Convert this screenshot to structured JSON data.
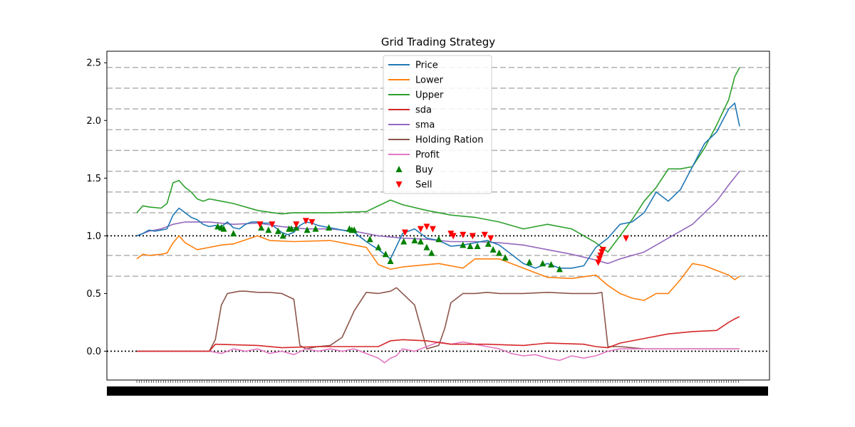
{
  "chart_data": {
    "type": "line",
    "title": "Grid Trading Strategy",
    "xlabel": "",
    "ylabel": "",
    "xlim": [
      0,
      499
    ],
    "ylim": [
      -0.25,
      2.6
    ],
    "yticks": [
      0.0,
      0.5,
      1.0,
      1.5,
      2.0,
      2.5
    ],
    "ytick_labels": [
      "0.0",
      "0.5",
      "1.0",
      "1.5",
      "2.0",
      "2.5"
    ],
    "grid_levels": [
      0.65,
      0.83,
      1.2,
      1.38,
      1.56,
      1.74,
      1.92,
      2.1,
      2.28,
      2.46
    ],
    "reference_lines": [
      0.0,
      1.0
    ],
    "legend_position": "top-center",
    "colors": {
      "price": "#1f77b4",
      "lower": "#ff7f0e",
      "upper": "#2ca02c",
      "sda": "#d62728",
      "sma": "#9467bd",
      "holding": "#8c564b",
      "profit": "#e377c2",
      "buy": "#008000",
      "sell": "#ff0000",
      "grid": "#b0b0b0"
    },
    "series": [
      {
        "name": "Price",
        "key": "price",
        "x": [
          0,
          5,
          10,
          15,
          20,
          25,
          30,
          35,
          40,
          45,
          50,
          55,
          60,
          65,
          70,
          75,
          80,
          85,
          90,
          95,
          100,
          105,
          110,
          115,
          120,
          125,
          130,
          135,
          140,
          145,
          150,
          160,
          170,
          180,
          190,
          200,
          210,
          220,
          230,
          240,
          250,
          260,
          270,
          280,
          290,
          300,
          310,
          320,
          330,
          340,
          350,
          360,
          370,
          380,
          390,
          400,
          410,
          420,
          430,
          440,
          450,
          460,
          470,
          480,
          490,
          495,
          499
        ],
        "y": [
          1.0,
          1.02,
          1.05,
          1.04,
          1.05,
          1.06,
          1.18,
          1.24,
          1.2,
          1.16,
          1.14,
          1.1,
          1.08,
          1.09,
          1.08,
          1.12,
          1.07,
          1.06,
          1.1,
          1.12,
          1.12,
          1.11,
          1.11,
          1.07,
          1.03,
          1.01,
          1.03,
          1.09,
          1.12,
          1.11,
          1.09,
          1.07,
          1.05,
          1.03,
          0.95,
          0.88,
          0.8,
          1.02,
          1.06,
          0.98,
          0.96,
          0.91,
          0.92,
          0.94,
          0.96,
          0.92,
          0.84,
          0.76,
          0.72,
          0.76,
          0.72,
          0.72,
          0.74,
          0.9,
          0.98,
          1.1,
          1.12,
          1.2,
          1.38,
          1.3,
          1.4,
          1.6,
          1.8,
          1.9,
          2.1,
          2.15,
          1.95
        ]
      },
      {
        "name": "Lower",
        "key": "lower",
        "x": [
          0,
          5,
          10,
          20,
          25,
          30,
          35,
          40,
          50,
          60,
          70,
          80,
          100,
          110,
          130,
          160,
          190,
          200,
          210,
          220,
          250,
          270,
          280,
          300,
          320,
          340,
          360,
          380,
          390,
          400,
          410,
          420,
          430,
          440,
          450,
          460,
          470,
          480,
          490,
          495,
          499
        ],
        "y": [
          0.8,
          0.84,
          0.83,
          0.84,
          0.85,
          0.94,
          1.0,
          0.94,
          0.88,
          0.9,
          0.92,
          0.93,
          1.0,
          0.96,
          0.95,
          0.96,
          0.9,
          0.75,
          0.71,
          0.73,
          0.76,
          0.72,
          0.8,
          0.8,
          0.72,
          0.64,
          0.63,
          0.66,
          0.57,
          0.5,
          0.46,
          0.44,
          0.5,
          0.5,
          0.62,
          0.76,
          0.74,
          0.7,
          0.66,
          0.62,
          0.65
        ]
      },
      {
        "name": "Upper",
        "key": "upper",
        "x": [
          0,
          5,
          10,
          20,
          25,
          30,
          35,
          40,
          45,
          50,
          55,
          60,
          70,
          80,
          100,
          120,
          130,
          160,
          190,
          210,
          220,
          240,
          260,
          280,
          300,
          320,
          340,
          360,
          380,
          390,
          400,
          410,
          420,
          430,
          440,
          450,
          460,
          470,
          480,
          490,
          495,
          499
        ],
        "y": [
          1.2,
          1.26,
          1.25,
          1.24,
          1.28,
          1.46,
          1.48,
          1.42,
          1.38,
          1.32,
          1.3,
          1.32,
          1.3,
          1.28,
          1.22,
          1.19,
          1.2,
          1.2,
          1.21,
          1.31,
          1.27,
          1.22,
          1.18,
          1.16,
          1.12,
          1.06,
          1.1,
          1.06,
          0.94,
          0.86,
          1.0,
          1.14,
          1.3,
          1.42,
          1.58,
          1.58,
          1.6,
          1.76,
          1.96,
          2.18,
          2.38,
          2.46
        ]
      },
      {
        "name": "sda",
        "key": "sda",
        "x": [
          0,
          60,
          65,
          100,
          120,
          150,
          200,
          210,
          220,
          240,
          260,
          290,
          320,
          340,
          370,
          380,
          390,
          400,
          410,
          420,
          440,
          460,
          480,
          490,
          495,
          499
        ],
        "y": [
          0.0,
          0.0,
          0.06,
          0.05,
          0.03,
          0.04,
          0.04,
          0.09,
          0.1,
          0.09,
          0.06,
          0.06,
          0.05,
          0.07,
          0.06,
          0.04,
          0.03,
          0.07,
          0.09,
          0.11,
          0.15,
          0.17,
          0.18,
          0.25,
          0.28,
          0.3
        ]
      },
      {
        "name": "sma",
        "key": "sma",
        "x": [
          0,
          5,
          10,
          20,
          30,
          40,
          60,
          80,
          100,
          120,
          140,
          160,
          180,
          200,
          220,
          240,
          260,
          280,
          300,
          320,
          340,
          360,
          380,
          390,
          400,
          420,
          440,
          460,
          480,
          490,
          499
        ],
        "y": [
          1.0,
          1.02,
          1.04,
          1.06,
          1.1,
          1.12,
          1.12,
          1.1,
          1.11,
          1.08,
          1.06,
          1.06,
          1.04,
          1.0,
          0.98,
          0.97,
          0.95,
          0.95,
          0.94,
          0.92,
          0.88,
          0.84,
          0.79,
          0.76,
          0.8,
          0.86,
          0.98,
          1.1,
          1.3,
          1.44,
          1.56
        ]
      },
      {
        "name": "Holding Ration",
        "key": "holding",
        "x": [
          0,
          60,
          65,
          70,
          75,
          80,
          85,
          90,
          100,
          110,
          120,
          130,
          135,
          140,
          150,
          160,
          170,
          180,
          190,
          200,
          210,
          215,
          220,
          230,
          240,
          250,
          255,
          260,
          270,
          280,
          290,
          300,
          320,
          340,
          360,
          380,
          385,
          390,
          400,
          410,
          420,
          430,
          440,
          450,
          460,
          470,
          480,
          490,
          499
        ],
        "y": [
          0.0,
          0.0,
          0.1,
          0.4,
          0.5,
          0.51,
          0.52,
          0.52,
          0.51,
          0.51,
          0.5,
          0.45,
          0.05,
          0.02,
          0.04,
          0.05,
          0.12,
          0.35,
          0.51,
          0.5,
          0.52,
          0.55,
          0.5,
          0.4,
          0.02,
          0.05,
          0.2,
          0.42,
          0.5,
          0.5,
          0.51,
          0.5,
          0.5,
          0.51,
          0.5,
          0.5,
          0.51,
          0.04,
          0.04,
          0.03,
          0.02,
          0.02,
          0.02,
          0.02,
          0.02,
          0.02,
          0.02,
          0.02,
          0.02
        ]
      },
      {
        "name": "Profit",
        "key": "profit",
        "x": [
          0,
          60,
          70,
          80,
          90,
          100,
          110,
          120,
          130,
          140,
          150,
          160,
          170,
          180,
          190,
          200,
          205,
          210,
          215,
          220,
          230,
          240,
          250,
          260,
          270,
          280,
          290,
          300,
          310,
          320,
          330,
          340,
          350,
          360,
          370,
          380,
          385,
          390,
          400,
          499
        ],
        "y": [
          0.0,
          0.0,
          -0.02,
          0.02,
          0.0,
          0.02,
          -0.02,
          0.0,
          -0.03,
          0.02,
          0.0,
          0.02,
          0.0,
          0.02,
          -0.02,
          -0.06,
          -0.1,
          -0.06,
          -0.04,
          0.02,
          0.0,
          0.04,
          0.08,
          0.06,
          0.08,
          0.06,
          0.04,
          0.02,
          -0.02,
          -0.04,
          -0.03,
          -0.06,
          -0.08,
          -0.04,
          -0.06,
          -0.04,
          -0.02,
          0.0,
          0.02,
          0.02
        ]
      }
    ],
    "buy": {
      "name": "Buy",
      "x": [
        67,
        70,
        72,
        80,
        103,
        109,
        117,
        121,
        126,
        128,
        132,
        141,
        148,
        159,
        176,
        178,
        180,
        193,
        200,
        206,
        210,
        221,
        230,
        235,
        240,
        244,
        250,
        270,
        276,
        282,
        291,
        295,
        300,
        305,
        325,
        336,
        343,
        350
      ],
      "y": [
        1.08,
        1.07,
        1.06,
        1.02,
        1.07,
        1.05,
        1.04,
        1.0,
        1.06,
        1.06,
        1.07,
        1.05,
        1.06,
        1.07,
        1.06,
        1.05,
        1.05,
        0.97,
        0.9,
        0.84,
        0.78,
        0.95,
        0.96,
        0.95,
        0.9,
        0.85,
        0.97,
        0.92,
        0.91,
        0.91,
        0.93,
        0.88,
        0.85,
        0.81,
        0.77,
        0.76,
        0.75,
        0.71
      ]
    },
    "sell": {
      "name": "Sell",
      "x": [
        102,
        112,
        132,
        140,
        145,
        222,
        235,
        240,
        245,
        260,
        262,
        270,
        278,
        288,
        293,
        382,
        383,
        384,
        385,
        386,
        405
      ],
      "y": [
        1.1,
        1.1,
        1.1,
        1.13,
        1.12,
        1.03,
        1.06,
        1.08,
        1.06,
        1.02,
        1.0,
        1.01,
        1.0,
        1.01,
        0.98,
        0.77,
        0.8,
        0.83,
        0.86,
        0.88,
        0.98
      ]
    },
    "legend": [
      "Price",
      "Lower",
      "Upper",
      "sda",
      "sma",
      "Holding Ration",
      "Profit",
      "Buy",
      "Sell"
    ]
  }
}
